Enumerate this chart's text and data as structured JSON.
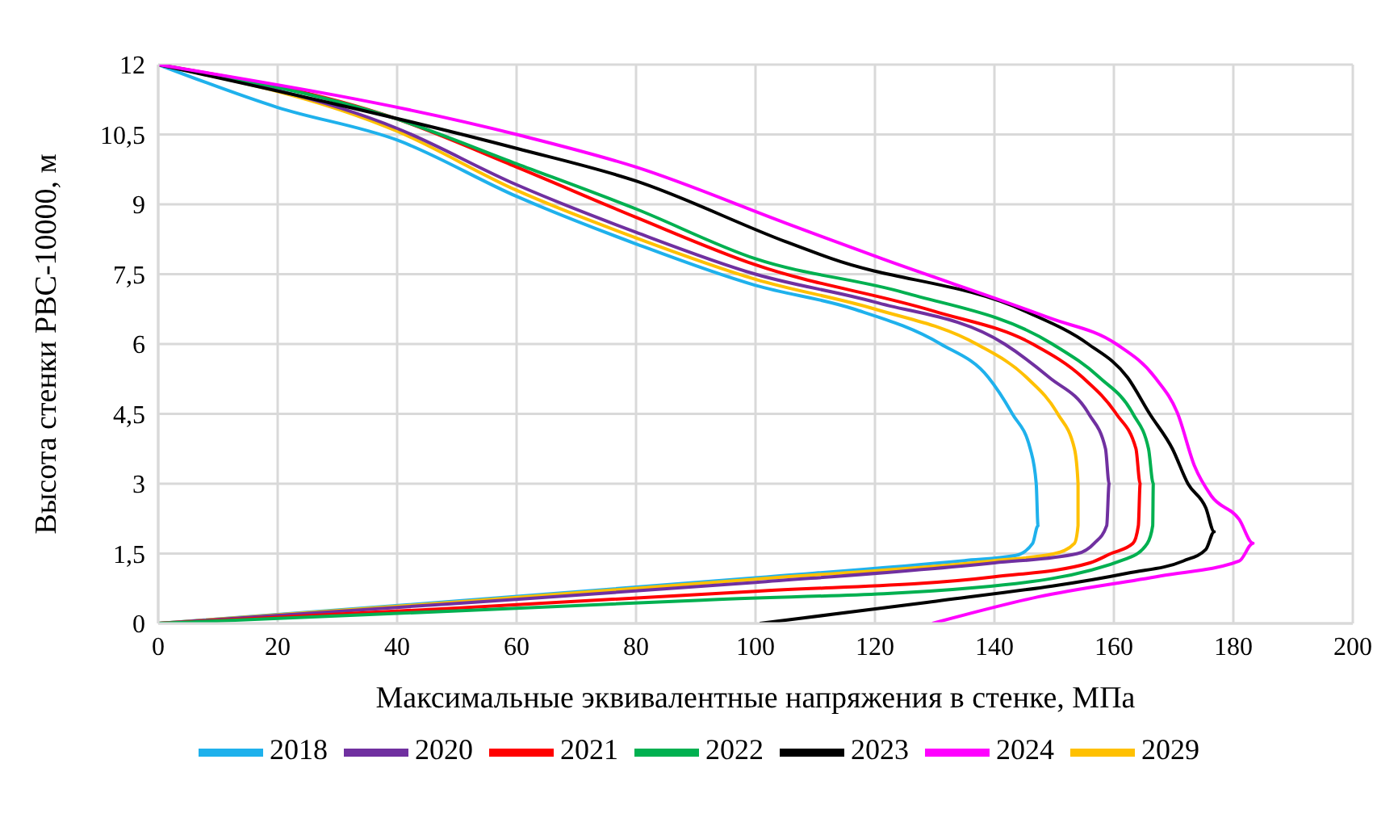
{
  "chart_data": {
    "type": "line",
    "xlabel": "Максимальные эквивалентные напряжения в стенке, МПа",
    "ylabel": "Высота стенки РВС-10000, м",
    "xlim": [
      0,
      200
    ],
    "xticks": [
      0,
      20,
      40,
      60,
      80,
      100,
      120,
      140,
      160,
      180,
      200
    ],
    "ylim": [
      0,
      12
    ],
    "yticks": [
      0,
      {
        "value": 1.5,
        "label": "1,5"
      },
      3,
      {
        "value": 4.5,
        "label": "4,5"
      },
      6,
      {
        "value": 7.5,
        "label": "7,5"
      },
      9,
      {
        "value": 10.5,
        "label": "10,5"
      },
      12
    ],
    "grid": true,
    "legend": "bottom",
    "marker": "none",
    "line_style": "solid",
    "series": [
      {
        "name": "2018",
        "color": "#1fb1ec",
        "x": [
          0,
          20,
          40,
          60,
          80,
          100,
          116.5,
          131,
          139,
          143,
          146,
          147,
          147.3,
          146.4,
          143.6,
          135,
          100,
          50,
          0
        ],
        "values": [
          12,
          11.08,
          10.38,
          9.17,
          8.15,
          7.26,
          6.75,
          6,
          5.28,
          4.5,
          3.75,
          3,
          2.1,
          1.72,
          1.46,
          1.35,
          0.98,
          0.48,
          0
        ]
      },
      {
        "name": "2029",
        "color": "#ffc000",
        "x": [
          0,
          40,
          60,
          80,
          100,
          120,
          137,
          145.4,
          150.6,
          153.4,
          154,
          154,
          153.4,
          150.1,
          140,
          100,
          50,
          0
        ],
        "values": [
          12,
          10.57,
          9.3,
          8.28,
          7.39,
          6.75,
          6,
          5.28,
          4.5,
          3.75,
          3,
          2.1,
          1.72,
          1.5,
          1.35,
          0.95,
          0.46,
          0
        ]
      },
      {
        "name": "2020",
        "color": "#7030a0",
        "x": [
          0,
          40,
          60,
          80,
          100,
          120,
          141.7,
          149.2,
          155.8,
          158.6,
          159.2,
          158.8,
          156.7,
          153.9,
          140,
          100,
          50,
          0
        ],
        "values": [
          12,
          10.63,
          9.42,
          8.4,
          7.5,
          6.9,
          6,
          5.28,
          4.5,
          3.75,
          3,
          2.1,
          1.72,
          1.5,
          1.3,
          0.88,
          0.43,
          0
        ]
      },
      {
        "name": "2021",
        "color": "#ff0000",
        "x": [
          0,
          40,
          60,
          80,
          100,
          130,
          146.4,
          154.8,
          160.4,
          163.7,
          164.4,
          164.1,
          163.2,
          159.5,
          156,
          140,
          100,
          50,
          0
        ],
        "values": [
          12,
          10.83,
          9.8,
          8.72,
          7.7,
          6.7,
          6,
          5.28,
          4.5,
          3.75,
          3,
          2.1,
          1.72,
          1.5,
          1.3,
          1,
          0.69,
          0.33,
          0
        ]
      },
      {
        "name": "2022",
        "color": "#00b050",
        "x": [
          0,
          40,
          60,
          80,
          100,
          125,
          149.7,
          157.6,
          163.2,
          165.8,
          166.6,
          166.5,
          165.6,
          162.3,
          137,
          91,
          50,
          0
        ],
        "values": [
          12,
          10.83,
          9.87,
          8.9,
          7.83,
          7.1,
          6,
          5.28,
          4.5,
          3.75,
          3,
          2.1,
          1.72,
          1.4,
          0.77,
          0.5,
          0.27,
          0
        ]
      },
      {
        "name": "2023",
        "color": "#000000",
        "x": [
          0,
          60,
          80,
          105,
          112.8,
          145.4,
          155.7,
          162.3,
          166,
          169.8,
          172.4,
          175.4,
          176.8,
          175.4,
          171.6,
          162.3,
          128.7,
          100.7
        ],
        "values": [
          12,
          10.2,
          9.5,
          8.2,
          7.83,
          6.69,
          6,
          5.28,
          4.5,
          3.75,
          3,
          2.48,
          1.97,
          1.59,
          1.34,
          1.08,
          0.45,
          0
        ]
      },
      {
        "name": "2024",
        "color": "#ff00ff",
        "x": [
          0,
          60,
          80,
          105,
          121.2,
          149.2,
          160.4,
          166.9,
          170.7,
          173.5,
          176.3,
          181,
          183.3,
          181,
          167.8,
          147.3,
          129.6
        ],
        "values": [
          12,
          10.5,
          9.8,
          8.6,
          7.83,
          6.56,
          6,
          5.28,
          4.5,
          3.38,
          2.74,
          2.23,
          1.72,
          1.34,
          1.02,
          0.57,
          0
        ]
      }
    ]
  }
}
